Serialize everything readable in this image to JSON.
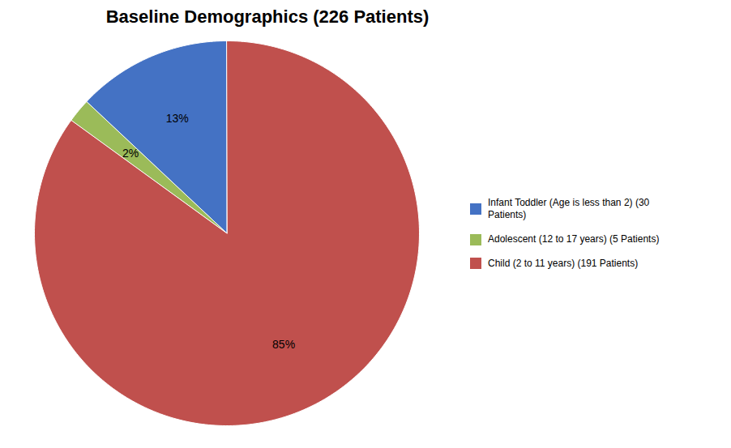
{
  "chart_data": {
    "type": "pie",
    "title": "Baseline Demographics (226 Patients)",
    "categories": [
      "Infant Toddler (Age is less than 2) (30\nPatients)",
      "Adolescent (12 to 17 years) (5 Patients)",
      "Child (2 to 11 years) (191 Patients)"
    ],
    "values": [
      13,
      2,
      85
    ],
    "value_labels": [
      "13%",
      "2%",
      "85%"
    ],
    "colors": [
      "#4472C4",
      "#9BBB59",
      "#C0504D"
    ],
    "data_labels": true,
    "legend": "right"
  }
}
